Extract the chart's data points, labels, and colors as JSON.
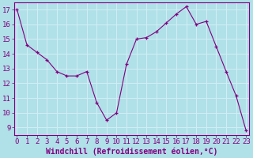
{
  "x": [
    0,
    1,
    2,
    3,
    4,
    5,
    6,
    7,
    8,
    9,
    10,
    11,
    12,
    13,
    14,
    15,
    16,
    17,
    18,
    19,
    20,
    21,
    22,
    23
  ],
  "y": [
    17.0,
    14.6,
    14.1,
    13.6,
    12.8,
    12.5,
    12.5,
    12.8,
    10.7,
    9.5,
    10.0,
    13.3,
    15.0,
    15.1,
    15.5,
    16.1,
    16.7,
    17.2,
    16.0,
    16.2,
    14.5,
    12.8,
    11.15,
    8.8
  ],
  "line_color": "#800080",
  "marker": "+",
  "bg_color": "#b0e0e8",
  "grid_color": "#d0eef4",
  "xlabel": "Windchill (Refroidissement éolien,°C)",
  "yticks": [
    9,
    10,
    11,
    12,
    13,
    14,
    15,
    16,
    17
  ],
  "xticks": [
    0,
    1,
    2,
    3,
    4,
    5,
    6,
    7,
    8,
    9,
    10,
    11,
    12,
    13,
    14,
    15,
    16,
    17,
    18,
    19,
    20,
    21,
    22,
    23
  ],
  "ylim": [
    8.5,
    17.5
  ],
  "xlim": [
    -0.3,
    23.3
  ],
  "font_color": "#800080",
  "font_size": 6.5
}
